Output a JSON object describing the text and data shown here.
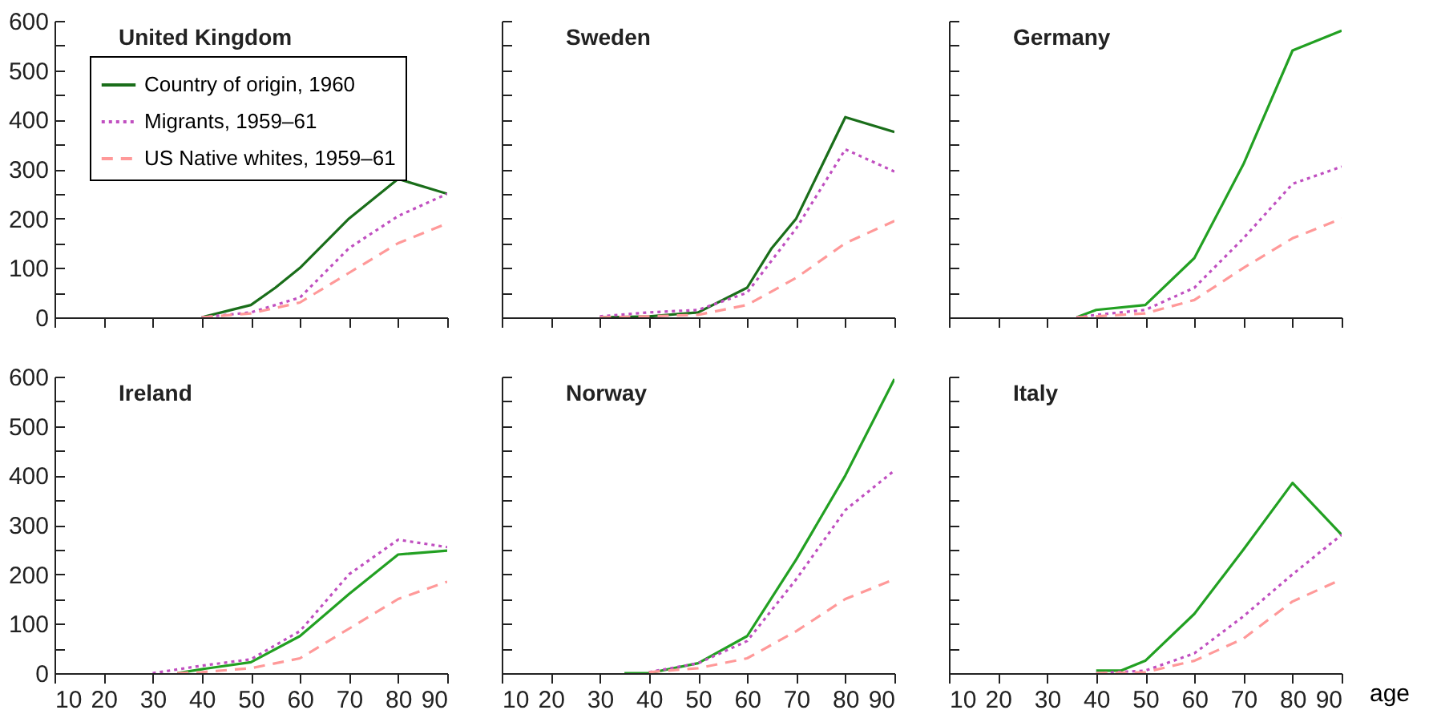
{
  "chart_data": [
    {
      "type": "line",
      "title": "United Kingdom",
      "legend": "top left",
      "tick_labels": "y",
      "xlim": [
        10,
        90
      ],
      "xticks": [
        10,
        20,
        30,
        40,
        50,
        60,
        70,
        80,
        90
      ],
      "ylim": [
        0,
        600
      ],
      "yticks": [
        0,
        {
          "value": 50,
          "label": null
        },
        100,
        {
          "value": 150,
          "label": null
        },
        200,
        {
          "value": 250,
          "label": null
        },
        300,
        {
          "value": 350,
          "label": null
        },
        400,
        {
          "value": 450,
          "label": null
        },
        500,
        {
          "value": 550,
          "label": null
        },
        600
      ],
      "series": [
        {
          "name": "Country of origin, 1960",
          "color": "#1a6e1a",
          "line_style": "solid",
          "x": [
            40,
            50,
            55,
            60,
            70,
            80,
            90
          ],
          "values": [
            0,
            25,
            60,
            100,
            200,
            280,
            250
          ]
        },
        {
          "name": "Migrants, 1959–61",
          "color": "#c04fc0",
          "line_style": "dotted",
          "x": [
            40,
            50,
            60,
            65,
            70,
            80,
            90
          ],
          "values": [
            0,
            10,
            40,
            90,
            140,
            205,
            250
          ]
        },
        {
          "name": "US Native whites, 1959–61",
          "color": "#ff9999",
          "line_style": "dashed",
          "x": [
            40,
            50,
            60,
            70,
            80,
            90
          ],
          "values": [
            0,
            8,
            30,
            90,
            150,
            190
          ]
        }
      ]
    },
    {
      "type": "line",
      "title": "Sweden",
      "tick_labels": false,
      "xlim": [
        10,
        90
      ],
      "xticks": [
        10,
        20,
        30,
        40,
        50,
        60,
        70,
        80,
        90
      ],
      "ylim": [
        0,
        600
      ],
      "yticks": [
        0,
        {
          "value": 50,
          "label": null
        },
        100,
        {
          "value": 150,
          "label": null
        },
        200,
        {
          "value": 250,
          "label": null
        },
        300,
        {
          "value": 350,
          "label": null
        },
        400,
        {
          "value": 450,
          "label": null
        },
        500,
        {
          "value": 550,
          "label": null
        },
        600
      ],
      "series": [
        {
          "color": "#1a6e1a",
          "line_style": "solid",
          "x": [
            30,
            40,
            50,
            60,
            65,
            70,
            80,
            90
          ],
          "values": [
            0,
            2,
            10,
            60,
            140,
            200,
            405,
            375
          ]
        },
        {
          "color": "#c04fc0",
          "line_style": "dotted",
          "x": [
            30,
            40,
            50,
            60,
            70,
            80,
            90
          ],
          "values": [
            2,
            10,
            15,
            50,
            180,
            340,
            295
          ]
        },
        {
          "color": "#ff9999",
          "line_style": "dashed",
          "x": [
            30,
            40,
            50,
            60,
            70,
            80,
            90
          ],
          "values": [
            0,
            2,
            5,
            25,
            80,
            150,
            195
          ]
        }
      ]
    },
    {
      "type": "line",
      "title": "Germany",
      "tick_labels": false,
      "xlim": [
        10,
        90
      ],
      "xticks": [
        10,
        20,
        30,
        40,
        50,
        60,
        70,
        80,
        90
      ],
      "ylim": [
        0,
        600
      ],
      "yticks": [
        0,
        {
          "value": 50,
          "label": null
        },
        100,
        {
          "value": 150,
          "label": null
        },
        200,
        {
          "value": 250,
          "label": null
        },
        300,
        {
          "value": 350,
          "label": null
        },
        400,
        {
          "value": 450,
          "label": null
        },
        500,
        {
          "value": 550,
          "label": null
        },
        600
      ],
      "series": [
        {
          "color": "#22a022",
          "line_style": "solid",
          "x": [
            36,
            40,
            50,
            60,
            70,
            80,
            90
          ],
          "values": [
            0,
            15,
            25,
            120,
            310,
            540,
            580
          ]
        },
        {
          "color": "#c04fc0",
          "line_style": "dotted",
          "x": [
            36,
            40,
            50,
            60,
            70,
            80,
            90
          ],
          "values": [
            0,
            5,
            15,
            60,
            160,
            270,
            305
          ]
        },
        {
          "color": "#ff9999",
          "line_style": "dashed",
          "x": [
            36,
            40,
            50,
            60,
            70,
            80,
            90
          ],
          "values": [
            0,
            2,
            8,
            35,
            100,
            160,
            200
          ]
        }
      ]
    },
    {
      "type": "line",
      "title": "Ireland",
      "xlim": [
        10,
        90
      ],
      "xticks": [
        10,
        20,
        30,
        40,
        50,
        60,
        70,
        80,
        90
      ],
      "ylim": [
        0,
        600
      ],
      "yticks": [
        0,
        {
          "value": 50,
          "label": null
        },
        100,
        {
          "value": 150,
          "label": null
        },
        200,
        {
          "value": 250,
          "label": null
        },
        300,
        {
          "value": 350,
          "label": null
        },
        400,
        {
          "value": 450,
          "label": null
        },
        500,
        {
          "value": 550,
          "label": null
        },
        600
      ],
      "series": [
        {
          "color": "#22a022",
          "line_style": "solid",
          "x": [
            35,
            40,
            50,
            60,
            70,
            80,
            90
          ],
          "values": [
            0,
            8,
            22,
            75,
            160,
            240,
            248
          ]
        },
        {
          "color": "#c04fc0",
          "line_style": "dotted",
          "x": [
            30,
            40,
            50,
            60,
            70,
            80,
            90
          ],
          "values": [
            0,
            15,
            28,
            85,
            200,
            270,
            255
          ]
        },
        {
          "color": "#ff9999",
          "line_style": "dashed",
          "x": [
            35,
            40,
            50,
            60,
            70,
            80,
            90
          ],
          "values": [
            0,
            2,
            10,
            30,
            90,
            150,
            185
          ]
        }
      ]
    },
    {
      "type": "line",
      "title": "Norway",
      "tick_labels": "x",
      "xlim": [
        10,
        90
      ],
      "xticks": [
        10,
        20,
        30,
        40,
        50,
        60,
        70,
        80,
        90
      ],
      "ylim": [
        0,
        600
      ],
      "yticks": [
        0,
        {
          "value": 50,
          "label": null
        },
        100,
        {
          "value": 150,
          "label": null
        },
        200,
        {
          "value": 250,
          "label": null
        },
        300,
        {
          "value": 350,
          "label": null
        },
        400,
        {
          "value": 450,
          "label": null
        },
        500,
        {
          "value": 550,
          "label": null
        },
        600
      ],
      "series": [
        {
          "color": "#22a022",
          "line_style": "solid",
          "x": [
            35,
            40,
            50,
            60,
            70,
            80,
            90
          ],
          "values": [
            0,
            0,
            20,
            75,
            230,
            400,
            595
          ]
        },
        {
          "color": "#c04fc0",
          "line_style": "dotted",
          "x": [
            40,
            50,
            60,
            70,
            80,
            90
          ],
          "values": [
            2,
            20,
            65,
            190,
            330,
            410
          ]
        },
        {
          "color": "#ff9999",
          "line_style": "dashed",
          "x": [
            40,
            50,
            60,
            70,
            80,
            90
          ],
          "values": [
            2,
            10,
            30,
            85,
            150,
            190
          ]
        }
      ]
    },
    {
      "type": "line",
      "title": "Italy",
      "xlabel": "age",
      "tick_labels": "x",
      "xlim": [
        10,
        90
      ],
      "xticks": [
        10,
        20,
        30,
        40,
        50,
        60,
        70,
        80,
        90
      ],
      "ylim": [
        0,
        600
      ],
      "yticks": [
        0,
        {
          "value": 50,
          "label": null
        },
        100,
        {
          "value": 150,
          "label": null
        },
        200,
        {
          "value": 250,
          "label": null
        },
        300,
        {
          "value": 350,
          "label": null
        },
        400,
        {
          "value": 450,
          "label": null
        },
        500,
        {
          "value": 550,
          "label": null
        },
        600
      ],
      "series": [
        {
          "color": "#22a022",
          "line_style": "solid",
          "x": [
            40,
            45,
            50,
            60,
            70,
            80,
            90
          ],
          "values": [
            5,
            5,
            25,
            120,
            250,
            385,
            280
          ]
        },
        {
          "color": "#c04fc0",
          "line_style": "dotted",
          "x": [
            40,
            50,
            60,
            70,
            80,
            90
          ],
          "values": [
            0,
            5,
            40,
            115,
            200,
            280
          ]
        },
        {
          "color": "#ff9999",
          "line_style": "dashed",
          "x": [
            40,
            50,
            60,
            70,
            80,
            90
          ],
          "values": [
            0,
            2,
            25,
            70,
            145,
            190
          ]
        }
      ]
    }
  ]
}
